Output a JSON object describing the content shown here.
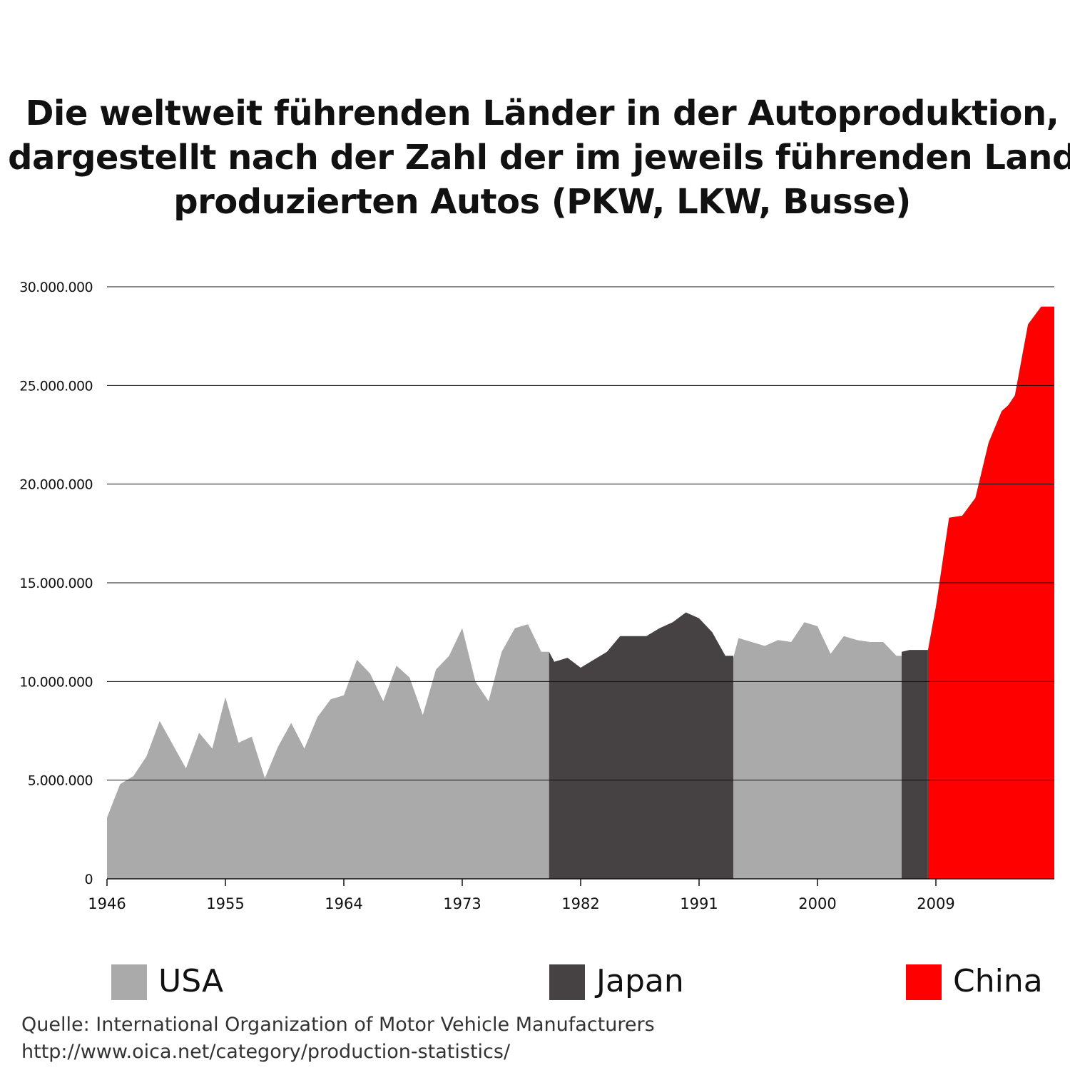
{
  "chart_data": {
    "type": "area",
    "title": "Die weltweit führenden Länder in der Autoproduktion, dargestellt nach der Zahl der im jeweils führenden Land produzierten Autos (PKW, LKW, Busse)",
    "title_lines": [
      "Die weltweit führenden Länder in der Autoproduktion,",
      "dargestellt nach der Zahl der im jeweils führenden Land",
      "produzierten Autos (PKW, LKW, Busse)"
    ],
    "xlabel": "",
    "ylabel": "",
    "xlim": [
      1946,
      2018
    ],
    "ylim": [
      0,
      30000000
    ],
    "xticks": [
      1946,
      1955,
      1964,
      1973,
      1982,
      1991,
      2000,
      2009
    ],
    "xtick_labels": [
      "1946",
      "1955",
      "1964",
      "1973",
      "1982",
      "1991",
      "2000",
      "2009"
    ],
    "yticks": [
      0,
      5000000,
      10000000,
      15000000,
      20000000,
      25000000,
      30000000
    ],
    "ytick_labels": [
      "0",
      "5.000.000",
      "10.000.000",
      "15.000.000",
      "20.000.000",
      "25.000.000",
      "30.000.000"
    ],
    "grid": "horizontal",
    "legend_position": "bottom",
    "series": [
      {
        "name": "USA",
        "color": "#aaaaaa",
        "segments": [
          {
            "x": [
              1946,
              1947,
              1948,
              1949,
              1950,
              1951,
              1952,
              1953,
              1954,
              1955,
              1956,
              1957,
              1958,
              1959,
              1960,
              1961,
              1962,
              1963,
              1964,
              1965,
              1966,
              1967,
              1968,
              1969,
              1970,
              1971,
              1972,
              1973,
              1974,
              1975,
              1976,
              1977,
              1978,
              1979,
              1979.6
            ],
            "y": [
              3100000,
              4800000,
              5200000,
              6200000,
              8000000,
              6800000,
              5600000,
              7400000,
              6600000,
              9200000,
              6900000,
              7200000,
              5100000,
              6700000,
              7900000,
              6600000,
              8200000,
              9100000,
              9300000,
              11100000,
              10400000,
              9000000,
              10800000,
              10200000,
              8300000,
              10600000,
              11300000,
              12700000,
              10000000,
              9000000,
              11500000,
              12700000,
              12900000,
              11500000,
              11500000
            ]
          },
          {
            "x": [
              1993.6,
              1994,
              1995,
              1996,
              1997,
              1998,
              1999,
              2000,
              2001,
              2002,
              2003,
              2004,
              2005,
              2006,
              2006.4
            ],
            "y": [
              11200000,
              12200000,
              12000000,
              11800000,
              12100000,
              12000000,
              13000000,
              12800000,
              11400000,
              12300000,
              12100000,
              12000000,
              12000000,
              11300000,
              11300000
            ]
          }
        ]
      },
      {
        "name": "Japan",
        "color": "#464243",
        "segments": [
          {
            "x": [
              1979.6,
              1980,
              1981,
              1982,
              1983,
              1984,
              1985,
              1986,
              1987,
              1988,
              1989,
              1990,
              1991,
              1992,
              1993,
              1993.6
            ],
            "y": [
              11500000,
              11000000,
              11200000,
              10700000,
              11100000,
              11500000,
              12300000,
              12300000,
              12300000,
              12700000,
              13000000,
              13500000,
              13200000,
              12500000,
              11300000,
              11300000
            ]
          },
          {
            "x": [
              2006.4,
              2007,
              2008,
              2008.4
            ],
            "y": [
              11500000,
              11600000,
              11600000,
              11600000
            ]
          }
        ]
      },
      {
        "name": "China",
        "color": "#ff0000",
        "segments": [
          {
            "x": [
              2008.4,
              2009,
              2010,
              2011,
              2012,
              2013,
              2014,
              2014.5,
              2015,
              2016,
              2017,
              2018
            ],
            "y": [
              11600000,
              13800000,
              18300000,
              18400000,
              19300000,
              22100000,
              23700000,
              24000000,
              24500000,
              28100000,
              29000000,
              29000000
            ]
          }
        ]
      }
    ]
  },
  "legend": [
    {
      "label": "USA",
      "color": "#aaaaaa"
    },
    {
      "label": "Japan",
      "color": "#464243"
    },
    {
      "label": "China",
      "color": "#ff0000"
    }
  ],
  "source": {
    "line1": "Quelle: International Organization of Motor Vehicle Manufacturers",
    "line2": "http://www.oica.net/category/production-statistics/"
  }
}
